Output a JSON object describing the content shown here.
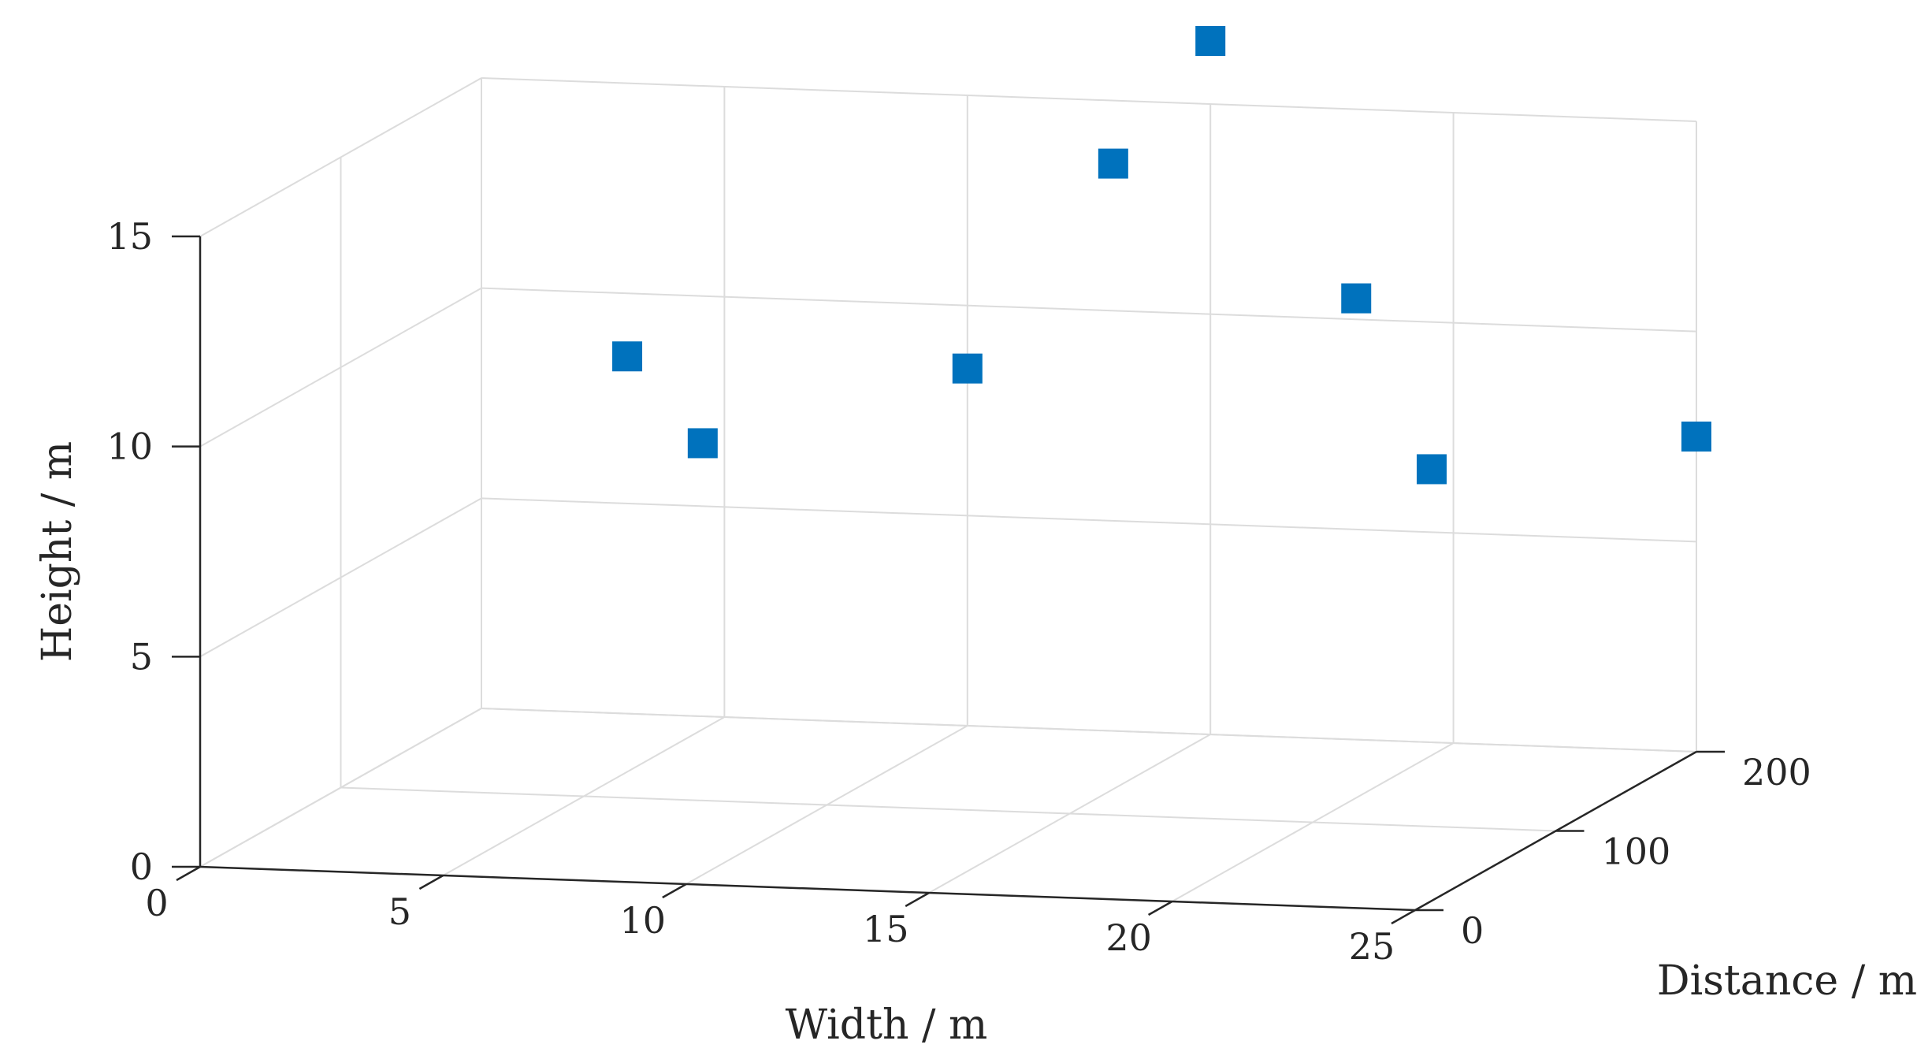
{
  "chart_data": {
    "type": "scatter3d",
    "title": "",
    "xlabel": "Width / m",
    "ylabel": "Distance / m",
    "zlabel": "Height / m",
    "xlim": [
      0,
      25
    ],
    "ylim": [
      0,
      200
    ],
    "zlim": [
      0,
      15
    ],
    "xticks": [
      "0",
      "5",
      "10",
      "15",
      "20",
      "25"
    ],
    "yticks": [
      "0",
      "100",
      "200"
    ],
    "zticks": [
      "0",
      "5",
      "10",
      "15"
    ],
    "grid": true,
    "marker": "square",
    "marker_color": "#0072BD",
    "points": [
      {
        "x": 3,
        "y": 200,
        "z": 8.5
      },
      {
        "x": 6,
        "y": 150,
        "z": 7.5
      },
      {
        "x": 10,
        "y": 200,
        "z": 8.5
      },
      {
        "x": 13,
        "y": 200,
        "z": 13.5
      },
      {
        "x": 15,
        "y": 200,
        "z": 16.5
      },
      {
        "x": 18,
        "y": 200,
        "z": 10.5
      },
      {
        "x": 21,
        "y": 150,
        "z": 7.5
      },
      {
        "x": 25,
        "y": 200,
        "z": 7.5
      }
    ]
  }
}
